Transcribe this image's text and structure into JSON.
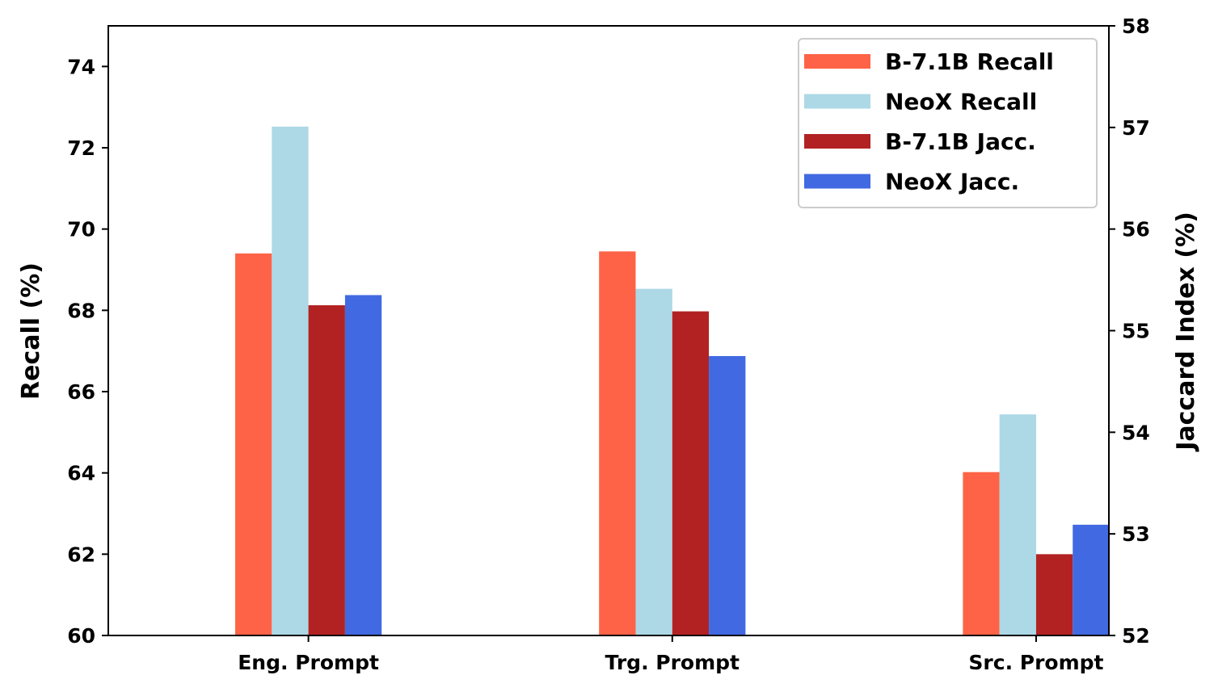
{
  "chart_data": {
    "type": "bar",
    "categories": [
      "Eng. Prompt",
      "Trg. Prompt",
      "Src. Prompt"
    ],
    "series": [
      {
        "name": "B-7.1B Recall",
        "axis": "left",
        "color": "#ff6347",
        "values": [
          69.4,
          69.45,
          64.02
        ]
      },
      {
        "name": "NeoX Recall",
        "axis": "left",
        "color": "#add8e6",
        "values": [
          72.52,
          68.53,
          65.44
        ]
      },
      {
        "name": "B-7.1B Jacc.",
        "axis": "right",
        "color": "#b22222",
        "values": [
          55.25,
          55.19,
          52.8
        ]
      },
      {
        "name": "NeoX Jacc.",
        "axis": "right",
        "color": "#4169e1",
        "values": [
          55.35,
          54.75,
          53.09
        ]
      }
    ],
    "ylabel": "Recall (%)",
    "ylabel_right": "Jaccard Index (%)",
    "ylim": [
      60,
      75
    ],
    "ylim_right": [
      52,
      58
    ],
    "yticks": [
      60,
      62,
      64,
      66,
      68,
      70,
      72,
      74
    ],
    "yticks_right": [
      52,
      53,
      54,
      55,
      56,
      57,
      58
    ],
    "legend_position": "top-right",
    "grid": false
  }
}
